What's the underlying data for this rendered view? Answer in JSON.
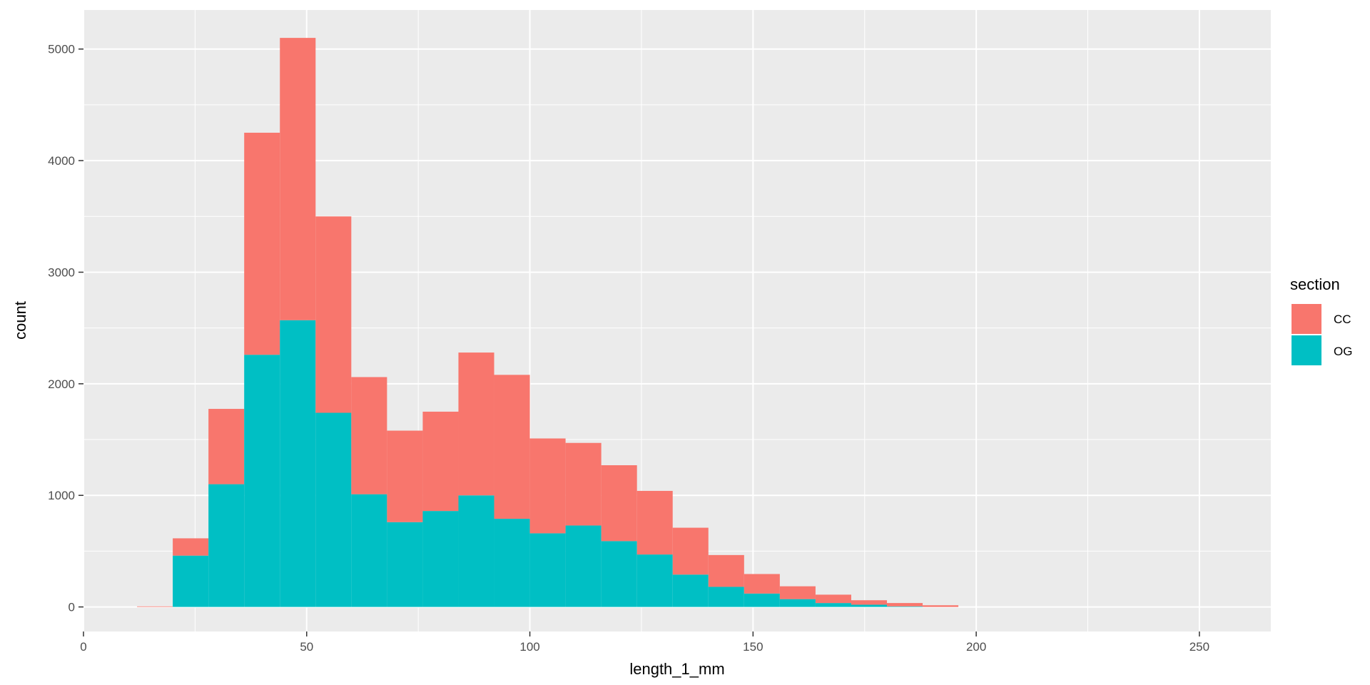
{
  "chart_data": {
    "type": "bar",
    "subtype": "stacked-histogram",
    "x": [
      16,
      24,
      32,
      40,
      48,
      56,
      64,
      72,
      80,
      88,
      96,
      104,
      112,
      120,
      128,
      136,
      144,
      152,
      160,
      168,
      176,
      184,
      192
    ],
    "bin_width": 8,
    "series": [
      {
        "name": "OG",
        "color": "#00BFC4",
        "values": [
          0,
          460,
          1100,
          2260,
          2570,
          1740,
          1010,
          760,
          860,
          1000,
          790,
          660,
          730,
          590,
          470,
          290,
          180,
          120,
          70,
          35,
          20,
          5,
          0
        ]
      },
      {
        "name": "CC",
        "color": "#F8766D",
        "values": [
          5,
          155,
          675,
          1990,
          2530,
          1760,
          1050,
          820,
          890,
          1280,
          1290,
          850,
          740,
          680,
          570,
          420,
          285,
          175,
          115,
          75,
          40,
          30,
          15
        ]
      }
    ],
    "xlabel": "length_1_mm",
    "ylabel": "count",
    "xlim": [
      0,
      266
    ],
    "ylim": [
      -220,
      5350
    ],
    "x_ticks": [
      0,
      50,
      100,
      150,
      200,
      250
    ],
    "y_ticks": [
      0,
      1000,
      2000,
      3000,
      4000,
      5000
    ],
    "x_tick_labels": [
      "0",
      "50",
      "100",
      "150",
      "200",
      "250"
    ],
    "y_tick_labels": [
      "0",
      "1000",
      "2000",
      "3000",
      "4000",
      "5000"
    ],
    "grid": true,
    "panel_color": "#EBEBEB",
    "legend": {
      "title": "section",
      "position": "right",
      "items": [
        {
          "label": "CC",
          "color": "#F8766D"
        },
        {
          "label": "OG",
          "color": "#00BFC4"
        }
      ]
    }
  }
}
